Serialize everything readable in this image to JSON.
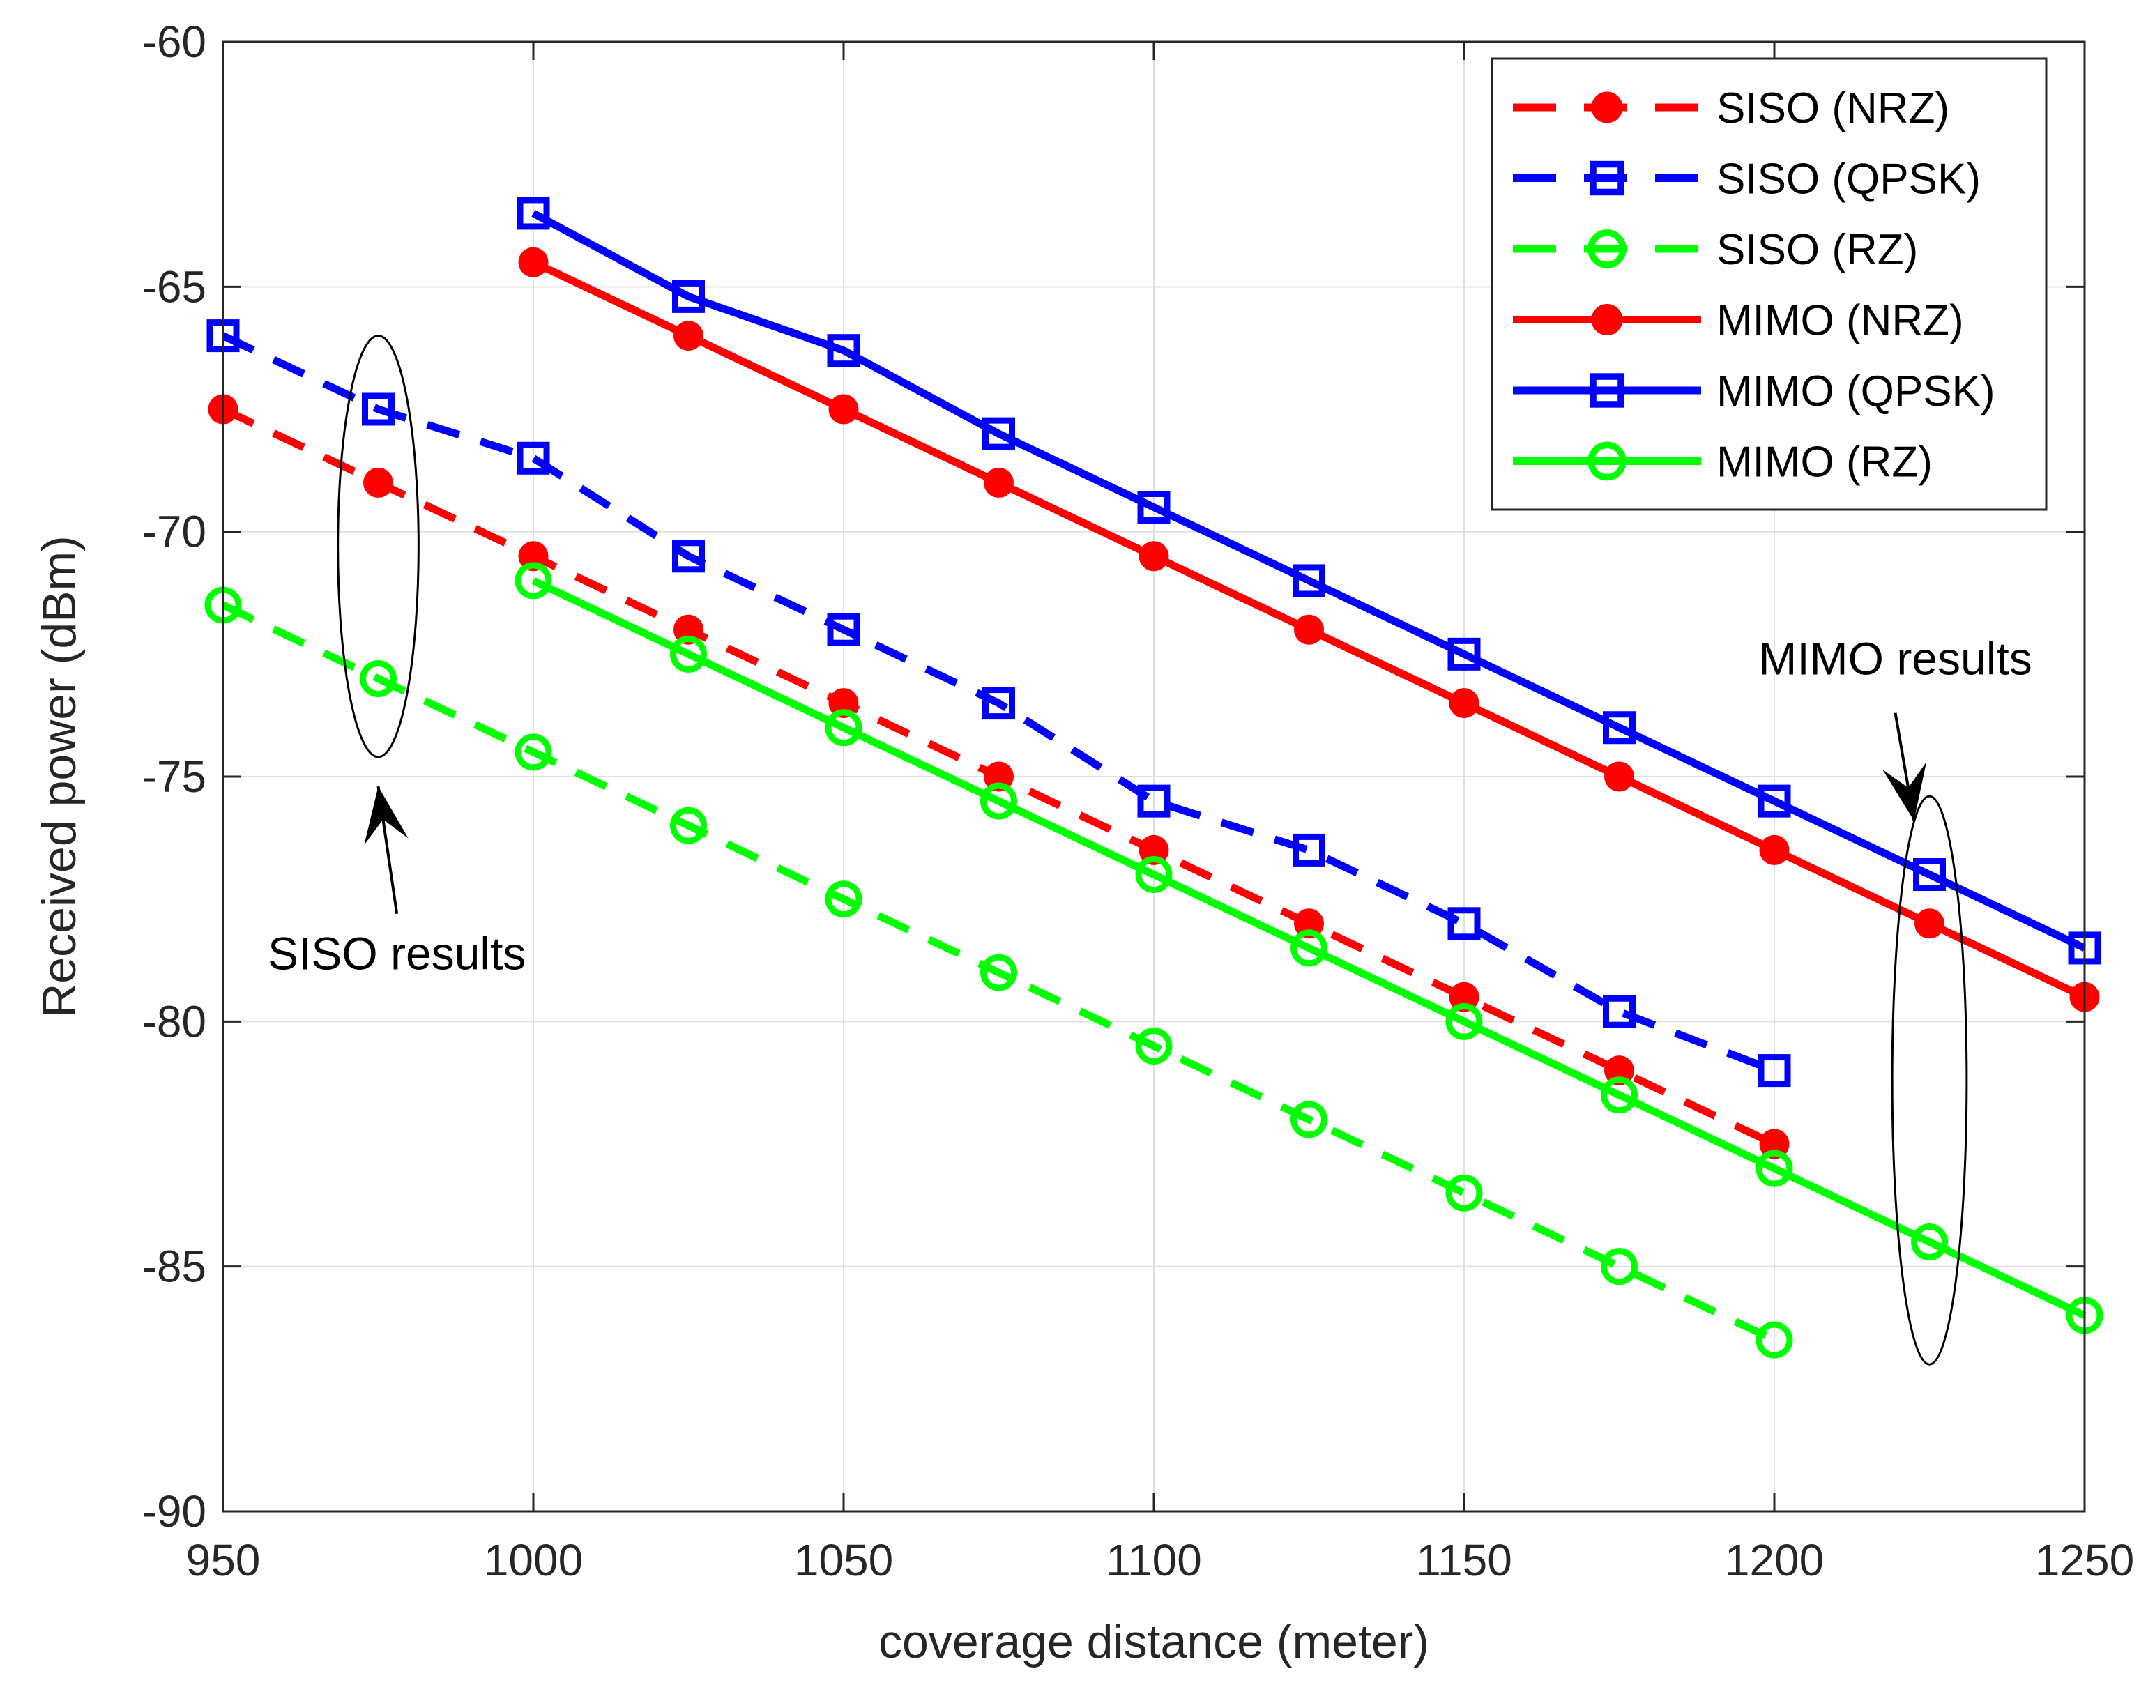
{
  "chart_data": {
    "type": "line",
    "xlabel": "coverage distance (meter)",
    "ylabel": "Received power (dBm)",
    "xlim": [
      950,
      1250
    ],
    "ylim": [
      -90,
      -60
    ],
    "xticks": [
      950,
      1000,
      1050,
      1100,
      1150,
      1200,
      1250
    ],
    "yticks": [
      -60,
      -65,
      -70,
      -75,
      -80,
      -85,
      -90
    ],
    "grid": true,
    "legend_position": "top-right",
    "series": [
      {
        "name": "SISO (NRZ)",
        "color": "#ff0000",
        "dash": "dashed",
        "marker": "circle-filled",
        "x": [
          950,
          975,
          1000,
          1025,
          1050,
          1075,
          1100,
          1125,
          1150,
          1175,
          1200
        ],
        "y": [
          -67.5,
          -69,
          -70.5,
          -72,
          -73.5,
          -75,
          -76.5,
          -78,
          -79.5,
          -81,
          -82.5
        ]
      },
      {
        "name": "SISO (QPSK)",
        "color": "#0000ff",
        "dash": "dashed",
        "marker": "square",
        "x": [
          950,
          975,
          1000,
          1025,
          1050,
          1075,
          1100,
          1125,
          1150,
          1175,
          1200
        ],
        "y": [
          -66,
          -67.5,
          -68.5,
          -70.5,
          -72,
          -73.5,
          -75.5,
          -76.5,
          -78,
          -79.8,
          -81
        ]
      },
      {
        "name": "SISO (RZ)",
        "color": "#00ff00",
        "dash": "dashed",
        "marker": "circle-open",
        "x": [
          950,
          975,
          1000,
          1025,
          1050,
          1075,
          1100,
          1125,
          1150,
          1175,
          1200
        ],
        "y": [
          -71.5,
          -73,
          -74.5,
          -76,
          -77.5,
          -79,
          -80.5,
          -82,
          -83.5,
          -85,
          -86.5
        ]
      },
      {
        "name": "MIMO (NRZ)",
        "color": "#ff0000",
        "dash": "solid",
        "marker": "circle-filled",
        "x": [
          1000,
          1025,
          1050,
          1075,
          1100,
          1125,
          1150,
          1175,
          1200,
          1225,
          1250
        ],
        "y": [
          -64.5,
          -66,
          -67.5,
          -69,
          -70.5,
          -72,
          -73.5,
          -75,
          -76.5,
          -78,
          -79.5
        ]
      },
      {
        "name": "MIMO (QPSK)",
        "color": "#0000ff",
        "dash": "solid",
        "marker": "square",
        "x": [
          1000,
          1025,
          1050,
          1075,
          1100,
          1125,
          1150,
          1175,
          1200,
          1225,
          1250
        ],
        "y": [
          -63.5,
          -65.2,
          -66.3,
          -68,
          -69.5,
          -71,
          -72.5,
          -74,
          -75.5,
          -77,
          -78.5
        ]
      },
      {
        "name": "MIMO (RZ)",
        "color": "#00ff00",
        "dash": "solid",
        "marker": "circle-open",
        "x": [
          1000,
          1025,
          1050,
          1075,
          1100,
          1125,
          1150,
          1175,
          1200,
          1225,
          1250
        ],
        "y": [
          -71,
          -72.5,
          -74,
          -75.5,
          -77,
          -78.5,
          -80,
          -81.5,
          -83,
          -84.5,
          -86
        ]
      }
    ],
    "annotations": [
      {
        "text": "SISO results",
        "ellipse_center": [
          975,
          -70.3
        ],
        "ellipse_halfwidth": 6.5,
        "ellipse_halfheight": 4.3,
        "arrow_from": [
          978,
          -77.8
        ],
        "arrow_to": [
          975,
          -75.2
        ]
      },
      {
        "text": "MIMO results",
        "ellipse_center": [
          1225,
          -81.2
        ],
        "ellipse_halfwidth": 6,
        "ellipse_halfheight": 5.8,
        "arrow_from": [
          1219.5,
          -73.7
        ],
        "arrow_to": [
          1222.5,
          -75.9
        ]
      }
    ]
  }
}
